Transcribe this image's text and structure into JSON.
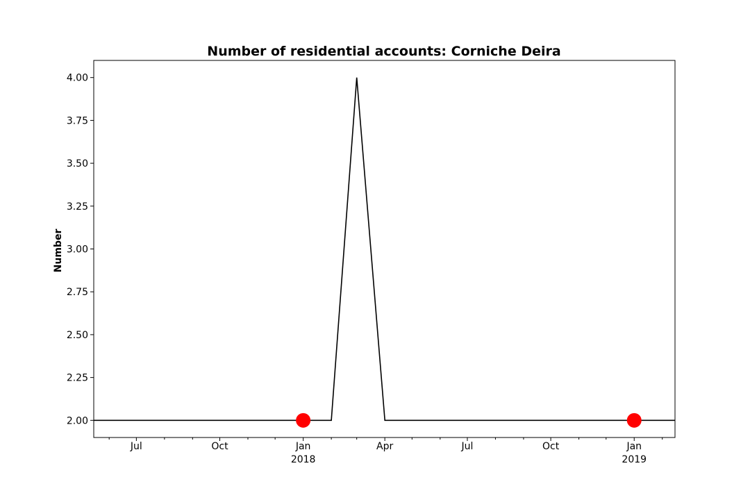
{
  "chart_data": {
    "type": "line",
    "title": "Number of residential accounts: Corniche Deira",
    "xlabel": "",
    "ylabel": "Number",
    "xlim": [
      "2017-05-15",
      "2019-02-15"
    ],
    "ylim": [
      1.9,
      4.1
    ],
    "grid": false,
    "legend": "none",
    "series": [
      {
        "color": "#000000",
        "points": [
          {
            "x": "2017-05-15",
            "y": 2
          },
          {
            "x": "2018-02-01",
            "y": 2
          },
          {
            "x": "2018-03-01",
            "y": 4
          },
          {
            "x": "2018-04-01",
            "y": 2
          },
          {
            "x": "2019-02-15",
            "y": 2
          }
        ]
      }
    ],
    "markers": {
      "color": "#ff0000",
      "points": [
        {
          "x": "2018-01-01",
          "y": 2
        },
        {
          "x": "2019-01-01",
          "y": 2
        }
      ]
    },
    "y_ticks": [
      {
        "value": 2.0,
        "label": "2.00"
      },
      {
        "value": 2.25,
        "label": "2.25"
      },
      {
        "value": 2.5,
        "label": "2.50"
      },
      {
        "value": 2.75,
        "label": "2.75"
      },
      {
        "value": 3.0,
        "label": "3.00"
      },
      {
        "value": 3.25,
        "label": "3.25"
      },
      {
        "value": 3.5,
        "label": "3.50"
      },
      {
        "value": 3.75,
        "label": "3.75"
      },
      {
        "value": 4.0,
        "label": "4.00"
      }
    ],
    "x_ticks": [
      {
        "date": "2017-07-01",
        "label": "Jul",
        "sublabel": ""
      },
      {
        "date": "2017-10-01",
        "label": "Oct",
        "sublabel": ""
      },
      {
        "date": "2018-01-01",
        "label": "Jan",
        "sublabel": "2018"
      },
      {
        "date": "2018-04-01",
        "label": "Apr",
        "sublabel": ""
      },
      {
        "date": "2018-07-01",
        "label": "Jul",
        "sublabel": ""
      },
      {
        "date": "2018-10-01",
        "label": "Oct",
        "sublabel": ""
      },
      {
        "date": "2019-01-01",
        "label": "Jan",
        "sublabel": "2019"
      }
    ],
    "x_minor_ticks": [
      "2017-06-01",
      "2017-08-01",
      "2017-09-01",
      "2017-11-01",
      "2017-12-01",
      "2018-02-01",
      "2018-03-01",
      "2018-05-01",
      "2018-06-01",
      "2018-08-01",
      "2018-09-01",
      "2018-11-01",
      "2018-12-01",
      "2019-02-01"
    ]
  }
}
